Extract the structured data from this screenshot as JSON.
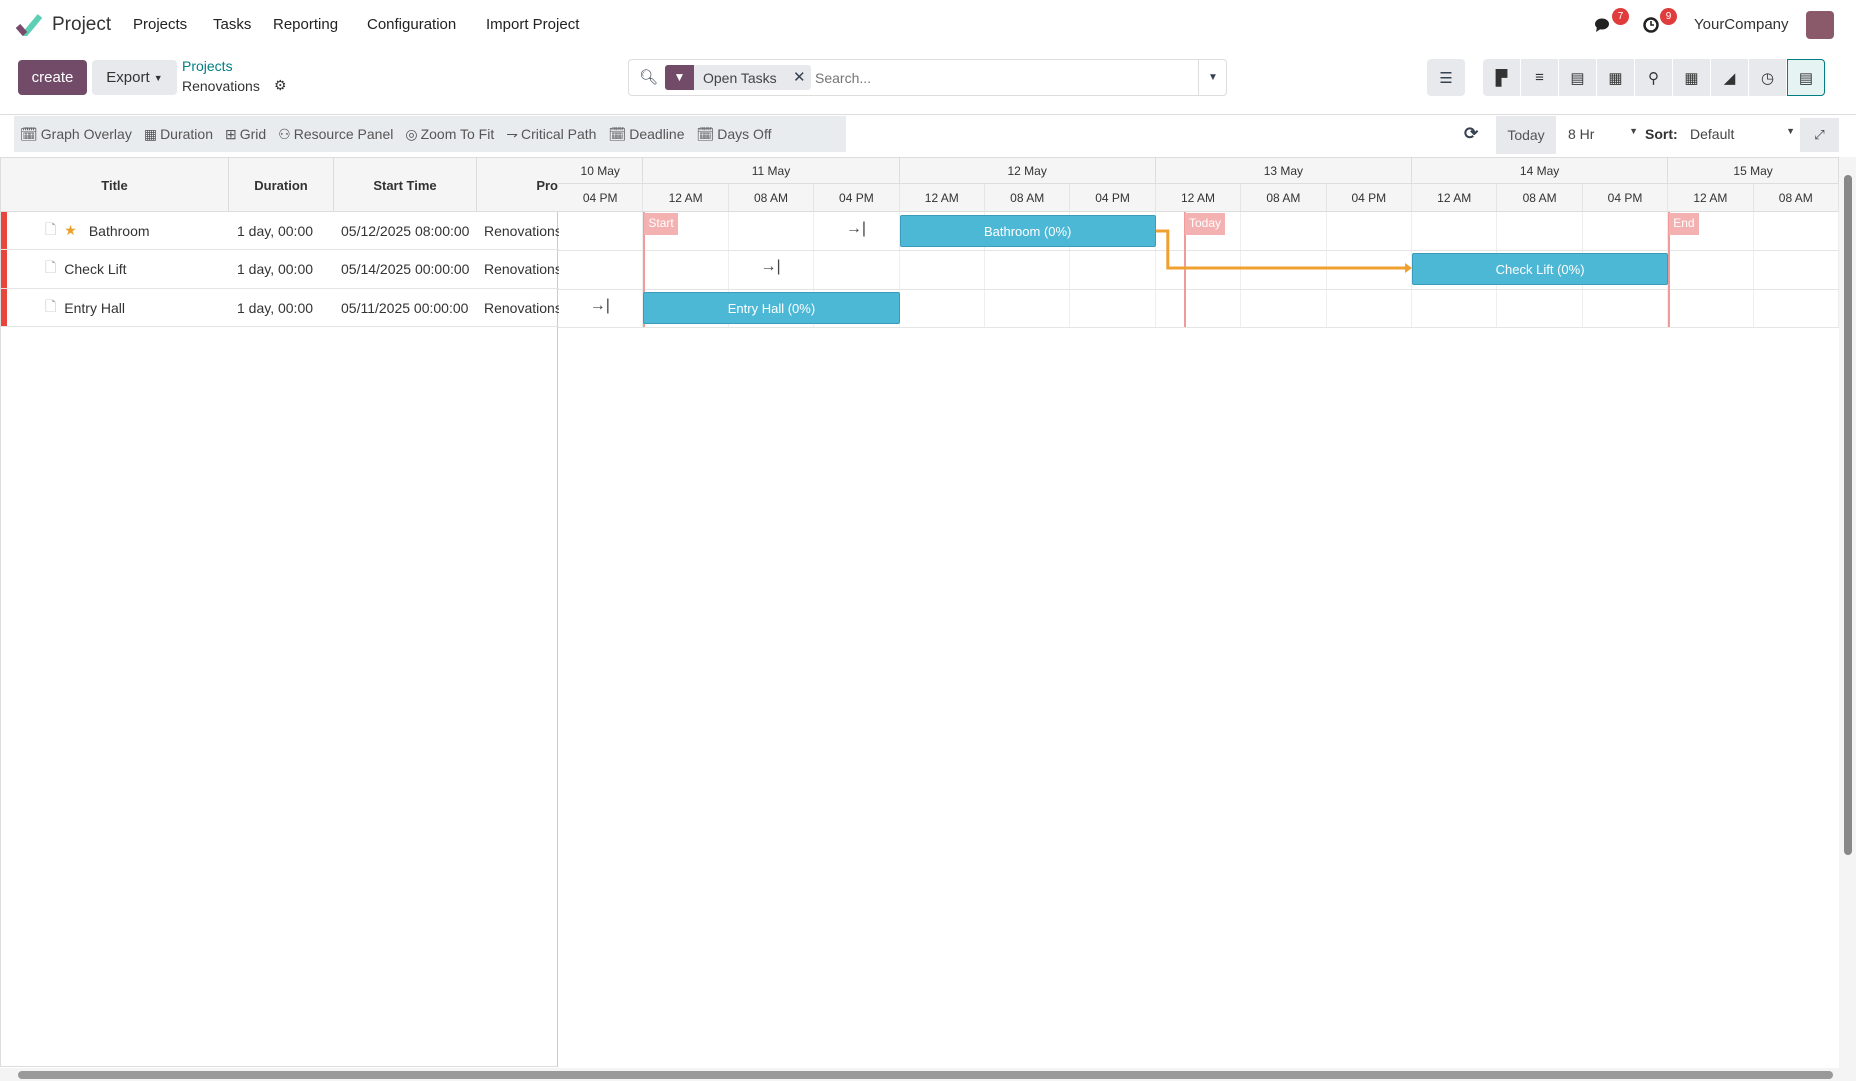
{
  "navbar": {
    "app_name": "Project",
    "menu": [
      "Projects",
      "Tasks",
      "Reporting",
      "Configuration",
      "Import Project"
    ],
    "messages_count": "7",
    "activities_count": "9",
    "company": "YourCompany"
  },
  "control": {
    "create_label": "create",
    "export_label": "Export",
    "breadcrumb_parent": "Projects",
    "breadcrumb_current": "Renovations",
    "filter_facet": "Open Tasks",
    "search_placeholder": "Search..."
  },
  "views": [
    "kanban",
    "list",
    "gantt-alt",
    "calendar",
    "map",
    "pivot",
    "graph",
    "activity",
    "gantt"
  ],
  "toolbar": {
    "items": [
      "Graph Overlay",
      "Duration",
      "Grid",
      "Resource Panel",
      "Zoom To Fit",
      "Critical Path",
      "Deadline",
      "Days Off"
    ],
    "today": "Today",
    "scale": "8 Hr",
    "sort_label": "Sort:",
    "sort_value": "Default"
  },
  "table": {
    "headers": [
      "Title",
      "Duration",
      "Start Time",
      "Pro"
    ],
    "rows": [
      {
        "title": "Bathroom",
        "starred": true,
        "duration": "1 day, 00:00",
        "start": "05/12/2025 08:00:00",
        "project": "Renovations"
      },
      {
        "title": "Check Lift",
        "starred": false,
        "duration": "1 day, 00:00",
        "start": "05/14/2025 00:00:00",
        "project": "Renovations"
      },
      {
        "title": "Entry Hall",
        "starred": false,
        "duration": "1 day, 00:00",
        "start": "05/11/2025 00:00:00",
        "project": "Renovations"
      }
    ]
  },
  "gantt": {
    "days": [
      {
        "label": "10 May",
        "cols": 1
      },
      {
        "label": "11 May",
        "cols": 3
      },
      {
        "label": "12 May",
        "cols": 3
      },
      {
        "label": "13 May",
        "cols": 3
      },
      {
        "label": "14 May",
        "cols": 3
      },
      {
        "label": "15 May",
        "cols": 2
      }
    ],
    "hours": [
      "04 PM",
      "12 AM",
      "08 AM",
      "04 PM",
      "12 AM",
      "08 AM",
      "04 PM",
      "12 AM",
      "08 AM",
      "04 PM",
      "12 AM",
      "08 AM",
      "04 PM",
      "12 AM",
      "08 AM"
    ],
    "bars": [
      {
        "label": "Bathroom (0%)",
        "row": 0,
        "start_col": 4,
        "span": 3
      },
      {
        "label": "Check Lift (0%)",
        "row": 1,
        "start_col": 10,
        "span": 3
      },
      {
        "label": "Entry Hall (0%)",
        "row": 2,
        "start_col": 1,
        "span": 3
      }
    ],
    "markers": [
      {
        "label": "Start",
        "col": 1
      },
      {
        "label": "Today",
        "col": 7.33
      },
      {
        "label": "End",
        "col": 13
      }
    ],
    "dependency_color": "#f0a030",
    "bar_color": "#4db8d6"
  }
}
